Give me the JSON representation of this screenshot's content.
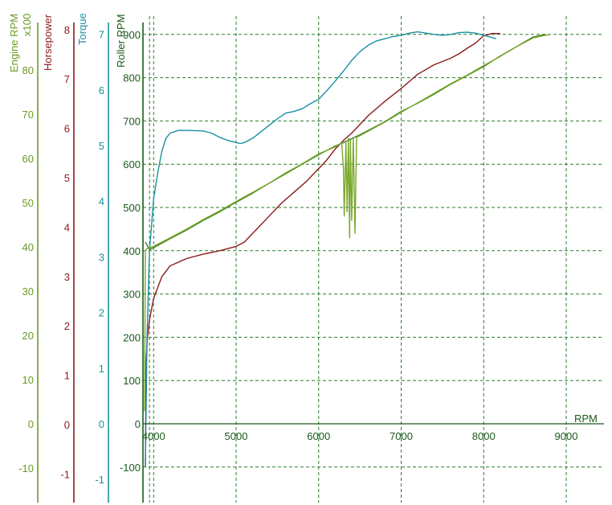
{
  "chart_data": {
    "type": "line",
    "grid": true,
    "axes": {
      "engine": {
        "title": "Engine RPM",
        "unit_label": "x100",
        "color": "#6a9a22",
        "ticks": [
          "-10",
          "0",
          "10",
          "20",
          "30",
          "40",
          "50",
          "60",
          "70",
          "80"
        ],
        "range": [
          -10,
          80
        ]
      },
      "horsepower": {
        "title": "Horsepower",
        "color": "#8b1a1a",
        "ticks": [
          "-1",
          "0",
          "1",
          "2",
          "3",
          "4",
          "5",
          "6",
          "7",
          "8"
        ],
        "range": [
          -1,
          8
        ]
      },
      "torque": {
        "title": "Torque",
        "color": "#1a8fa0",
        "ticks": [
          "-1",
          "0",
          "1",
          "2",
          "3",
          "4",
          "5",
          "6",
          "7"
        ],
        "range": [
          -1,
          7
        ]
      },
      "roller": {
        "title": "Roller RPM",
        "color": "#1a5a1a",
        "ticks": [
          "-100",
          "0",
          "100",
          "200",
          "300",
          "400",
          "500",
          "600",
          "700",
          "800",
          "900"
        ],
        "range": [
          -100,
          900
        ]
      },
      "x": {
        "title": "RPM",
        "ticks": [
          "4000",
          "5000",
          "6000",
          "7000",
          "8000",
          "9000"
        ],
        "range": [
          3860,
          9550
        ]
      }
    },
    "grid_x": [
      3950,
      4000,
      5000,
      6000,
      7000,
      8000,
      9000
    ],
    "grid_y": [
      0,
      100,
      200,
      300,
      400,
      500,
      600,
      700,
      800,
      900
    ],
    "series": [
      {
        "key": "horsepower",
        "color": "#8b1a1a",
        "points": [
          [
            3900,
            -100
          ],
          [
            3910,
            150
          ],
          [
            3925,
            200
          ],
          [
            3950,
            240
          ],
          [
            4000,
            290
          ],
          [
            4100,
            340
          ],
          [
            4200,
            365
          ],
          [
            4400,
            382
          ],
          [
            4600,
            392
          ],
          [
            4800,
            400
          ],
          [
            5000,
            410
          ],
          [
            5100,
            420
          ],
          [
            5250,
            450
          ],
          [
            5400,
            480
          ],
          [
            5550,
            510
          ],
          [
            5700,
            535
          ],
          [
            5850,
            560
          ],
          [
            6000,
            590
          ],
          [
            6100,
            610
          ],
          [
            6200,
            635
          ],
          [
            6300,
            655
          ],
          [
            6400,
            672
          ],
          [
            6600,
            712
          ],
          [
            6800,
            745
          ],
          [
            7000,
            775
          ],
          [
            7200,
            808
          ],
          [
            7400,
            830
          ],
          [
            7600,
            845
          ],
          [
            7700,
            855
          ],
          [
            7800,
            868
          ],
          [
            7900,
            880
          ],
          [
            8000,
            897
          ],
          [
            8100,
            902
          ],
          [
            8200,
            902
          ]
        ]
      },
      {
        "key": "torque",
        "color": "#1a8fa0",
        "points": [
          [
            3900,
            -100
          ],
          [
            3920,
            200
          ],
          [
            3950,
            400
          ],
          [
            3980,
            470
          ],
          [
            4000,
            520
          ],
          [
            4050,
            580
          ],
          [
            4100,
            630
          ],
          [
            4150,
            660
          ],
          [
            4200,
            672
          ],
          [
            4300,
            678
          ],
          [
            4400,
            678
          ],
          [
            4600,
            677
          ],
          [
            4700,
            672
          ],
          [
            4800,
            662
          ],
          [
            4900,
            655
          ],
          [
            5000,
            650
          ],
          [
            5050,
            648
          ],
          [
            5100,
            650
          ],
          [
            5200,
            660
          ],
          [
            5300,
            675
          ],
          [
            5400,
            690
          ],
          [
            5500,
            705
          ],
          [
            5600,
            718
          ],
          [
            5700,
            722
          ],
          [
            5800,
            728
          ],
          [
            5900,
            740
          ],
          [
            6000,
            750
          ],
          [
            6100,
            770
          ],
          [
            6200,
            792
          ],
          [
            6300,
            815
          ],
          [
            6400,
            840
          ],
          [
            6500,
            860
          ],
          [
            6600,
            875
          ],
          [
            6700,
            885
          ],
          [
            6800,
            890
          ],
          [
            6900,
            895
          ],
          [
            7000,
            898
          ],
          [
            7100,
            903
          ],
          [
            7200,
            906
          ],
          [
            7300,
            903
          ],
          [
            7400,
            900
          ],
          [
            7500,
            898
          ],
          [
            7600,
            900
          ],
          [
            7700,
            904
          ],
          [
            7800,
            905
          ],
          [
            7900,
            903
          ],
          [
            8000,
            898
          ],
          [
            8100,
            893
          ],
          [
            8150,
            890
          ]
        ]
      },
      {
        "key": "roller",
        "color": "#3a7a1a",
        "points": [
          [
            3900,
            420
          ],
          [
            3950,
            403
          ],
          [
            4000,
            407
          ],
          [
            4200,
            428
          ],
          [
            4400,
            448
          ],
          [
            4600,
            470
          ],
          [
            4800,
            490
          ],
          [
            5000,
            512
          ],
          [
            5200,
            533
          ],
          [
            5400,
            556
          ],
          [
            5600,
            578
          ],
          [
            5800,
            600
          ],
          [
            6000,
            622
          ],
          [
            6200,
            642
          ],
          [
            6300,
            650
          ],
          [
            6500,
            668
          ],
          [
            6800,
            698
          ],
          [
            7000,
            722
          ],
          [
            7200,
            741
          ],
          [
            7400,
            762
          ],
          [
            7600,
            785
          ],
          [
            7800,
            805
          ],
          [
            8000,
            826
          ],
          [
            8200,
            850
          ],
          [
            8400,
            872
          ],
          [
            8600,
            894
          ],
          [
            8750,
            900
          ]
        ]
      },
      {
        "key": "engine",
        "color": "#7aa82a",
        "points": [
          [
            3890,
            30
          ],
          [
            3900,
            400
          ],
          [
            3920,
            405
          ],
          [
            4000,
            410
          ],
          [
            4200,
            430
          ],
          [
            4400,
            450
          ],
          [
            4600,
            472
          ],
          [
            4800,
            492
          ],
          [
            5000,
            514
          ],
          [
            5200,
            535
          ],
          [
            5400,
            556
          ],
          [
            5600,
            580
          ],
          [
            5800,
            601
          ],
          [
            6000,
            624
          ],
          [
            6200,
            640
          ],
          [
            6280,
            650
          ],
          [
            6300,
            590
          ],
          [
            6310,
            480
          ],
          [
            6330,
            650
          ],
          [
            6345,
            490
          ],
          [
            6360,
            660
          ],
          [
            6375,
            430
          ],
          [
            6385,
            655
          ],
          [
            6400,
            470
          ],
          [
            6420,
            660
          ],
          [
            6440,
            440
          ],
          [
            6460,
            662
          ],
          [
            6500,
            666
          ],
          [
            6800,
            697
          ],
          [
            7000,
            720
          ],
          [
            7200,
            742
          ],
          [
            7400,
            764
          ],
          [
            7600,
            786
          ],
          [
            7800,
            806
          ],
          [
            8000,
            828
          ],
          [
            8200,
            849
          ],
          [
            8400,
            872
          ],
          [
            8600,
            892
          ],
          [
            8800,
            900
          ]
        ]
      }
    ]
  }
}
